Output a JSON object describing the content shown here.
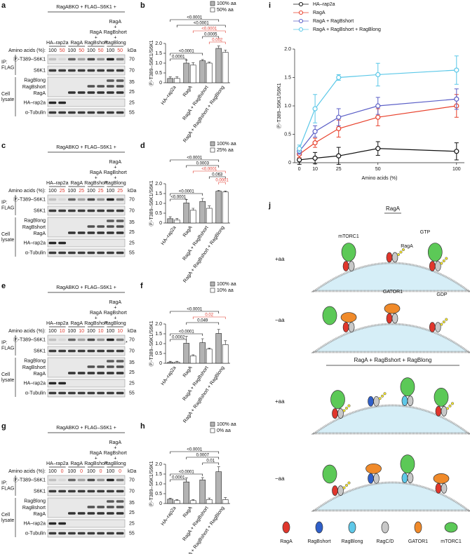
{
  "panel_labels": [
    "a",
    "b",
    "c",
    "d",
    "e",
    "f",
    "g",
    "h",
    "i",
    "j"
  ],
  "blots": [
    {
      "header": "RagABKO + FLAG–S6K1 +",
      "lanes": [
        [
          "HA–rap2a"
        ],
        [
          "RagA"
        ],
        [
          "RagA",
          "+",
          "RagBshort"
        ],
        [
          "RagA",
          "+",
          "RagBshort",
          "+",
          "RagBlong"
        ]
      ],
      "amino_acids_label": "Amino acids (%):",
      "amino_acids": [
        100,
        50,
        100,
        50,
        100,
        50,
        100,
        50
      ],
      "reduced_color": "#e03a2f",
      "kda_label": "kDa",
      "ip_label": [
        "IP:",
        "FLAG"
      ],
      "lysate_label": [
        "Cell",
        "lysate"
      ],
      "rows": [
        {
          "labels": [
            "Ⓟ-T389–S6K1"
          ],
          "kda": [
            70
          ]
        },
        {
          "labels": [
            "S6K1"
          ],
          "kda": [
            70
          ]
        },
        {
          "labels": [
            "RagBlong",
            "RagBshort",
            "RagA"
          ],
          "kda": [
            35,
            25
          ]
        },
        {
          "labels": [
            "HA–rap2a"
          ],
          "kda": [
            25
          ]
        },
        {
          "labels": [
            "α-Tubulin"
          ],
          "kda": [
            55
          ]
        }
      ]
    },
    {
      "header": "RagABKO + FLAG–S6K1 +",
      "lanes": [
        [
          "HA–rap2a"
        ],
        [
          "RagA"
        ],
        [
          "RagA",
          "+",
          "RagBshort"
        ],
        [
          "RagA",
          "+",
          "RagBshort",
          "+",
          "RagBlong"
        ]
      ],
      "amino_acids_label": "Amino acids (%):",
      "amino_acids": [
        100,
        25,
        100,
        25,
        100,
        25,
        100,
        25
      ],
      "reduced_color": "#e03a2f",
      "kda_label": "kDa",
      "ip_label": [
        "IP:",
        "FLAG"
      ],
      "lysate_label": [
        "Cell",
        "lysate"
      ],
      "rows": [
        {
          "labels": [
            "Ⓟ-T389–S6K1"
          ],
          "kda": [
            70
          ]
        },
        {
          "labels": [
            "S6K1"
          ],
          "kda": [
            70
          ]
        },
        {
          "labels": [
            "RagBlong",
            "RagBshort",
            "RagA"
          ],
          "kda": [
            35,
            25
          ]
        },
        {
          "labels": [
            "HA–rap2a"
          ],
          "kda": [
            25
          ]
        },
        {
          "labels": [
            "α-Tubulin"
          ],
          "kda": [
            55
          ]
        }
      ]
    },
    {
      "header": "RagABKO + FLAG–S6K1 +",
      "lanes": [
        [
          "HA–rap2a"
        ],
        [
          "RagA"
        ],
        [
          "RagA",
          "+",
          "RagBshort"
        ],
        [
          "RagA",
          "+",
          "RagBshort",
          "+",
          "RagBlong"
        ]
      ],
      "amino_acids_label": "Amino acids (%):",
      "amino_acids": [
        100,
        10,
        100,
        10,
        100,
        10,
        100,
        10
      ],
      "reduced_color": "#e03a2f",
      "kda_label": "kDa",
      "ip_label": [
        "IP:",
        "FLAG"
      ],
      "lysate_label": [
        "Cell",
        "lysate"
      ],
      "rows": [
        {
          "labels": [
            "Ⓟ-T389–S6K1"
          ],
          "kda": [
            70
          ],
          "note": "*"
        },
        {
          "labels": [
            "S6K1"
          ],
          "kda": [
            70
          ]
        },
        {
          "labels": [
            "RagBlong",
            "RagBshort",
            "RagA"
          ],
          "kda": [
            35,
            25
          ]
        },
        {
          "labels": [
            "HA–rap2a"
          ],
          "kda": [
            25
          ]
        },
        {
          "labels": [
            "α-Tubulin"
          ],
          "kda": [
            55
          ]
        }
      ]
    },
    {
      "header": "RagABKO + FLAG–S6K1 +",
      "lanes": [
        [
          "HA–rap2a"
        ],
        [
          "RagA"
        ],
        [
          "RagA",
          "+",
          "RagBshort"
        ],
        [
          "RagA",
          "+",
          "RagBshort",
          "+",
          "RagBlong"
        ]
      ],
      "amino_acids_label": "Amino acids (%):",
      "amino_acids": [
        100,
        0,
        100,
        0,
        100,
        0,
        100,
        0
      ],
      "reduced_color": "#e03a2f",
      "kda_label": "kDa",
      "ip_label": [
        "IP:",
        "FLAG"
      ],
      "lysate_label": [
        "Cell",
        "lysate"
      ],
      "rows": [
        {
          "labels": [
            "Ⓟ-T389–S6K1"
          ],
          "kda": [
            70
          ]
        },
        {
          "labels": [
            "S6K1"
          ],
          "kda": [
            70
          ]
        },
        {
          "labels": [
            "RagBlong",
            "RagBshort",
            "RagA"
          ],
          "kda": [
            35,
            25
          ]
        },
        {
          "labels": [
            "HA–rap2a"
          ],
          "kda": [
            25
          ]
        },
        {
          "labels": [
            "α-Tubulin"
          ],
          "kda": [
            55
          ]
        }
      ]
    }
  ],
  "chart_data": [
    {
      "type": "bar",
      "y_label": "Ⓟ-T389–S6K1/S6K1",
      "categories": [
        "HA–rap2a",
        "RagA",
        "RagA + RagBshort",
        "RagA + RagBshort + RagBlong"
      ],
      "series": [
        {
          "name": "100% aa",
          "color": "#b3b3b3",
          "values": [
            0.22,
            1.0,
            1.12,
            1.75
          ],
          "errors": [
            0.08,
            0.15,
            0.06,
            0.12
          ]
        },
        {
          "name": "50% aa",
          "color": "#ffffff",
          "values": [
            0.22,
            0.9,
            1.0,
            1.55
          ],
          "errors": [
            0.08,
            0.12,
            0.05,
            0.12
          ]
        }
      ],
      "ylim": [
        0,
        2
      ],
      "yticks": [
        0,
        0.5,
        {
          "value": 1,
          "label": "1.0"
        },
        1.5,
        {
          "value": 2,
          "label": "2.0"
        }
      ],
      "brackets": [
        {
          "label": "<0.0001",
          "color": "#000000"
        },
        {
          "label": "<0.0001",
          "color": "#000000"
        },
        {
          "label": "<0.0001",
          "color": "#e03a2f"
        },
        {
          "label": "0.0005",
          "color": "#000000"
        },
        {
          "label": "0.002",
          "color": "#e03a2f"
        },
        {
          "label": "<0.0001",
          "color": "#000000"
        },
        {
          "label": "0.0001",
          "color": "#000000"
        }
      ]
    },
    {
      "type": "bar",
      "y_label": "Ⓟ-T389–S6K1/S6K1",
      "categories": [
        "HA–rap2a",
        "RagA",
        "RagA + RagBshort",
        "RagA + RagBshort + RagBlong"
      ],
      "series": [
        {
          "name": "100% aa",
          "color": "#b3b3b3",
          "values": [
            0.22,
            1.02,
            1.1,
            1.62
          ],
          "errors": [
            0.1,
            0.18,
            0.15,
            0.05
          ]
        },
        {
          "name": "25% aa",
          "color": "#ffffff",
          "values": [
            0.15,
            0.65,
            0.75,
            1.58
          ],
          "errors": [
            0.08,
            0.1,
            0.12,
            0.05
          ]
        }
      ],
      "ylim": [
        0,
        2
      ],
      "yticks": [
        0,
        0.5,
        {
          "value": 1,
          "label": "1.0"
        },
        1.5,
        {
          "value": 2,
          "label": "2.0"
        }
      ],
      "brackets": [
        {
          "label": "<0.0001",
          "color": "#000000"
        },
        {
          "label": "0.0003",
          "color": "#000000"
        },
        {
          "label": "<0.0001",
          "color": "#e03a2f"
        },
        {
          "label": "0.063",
          "color": "#000000"
        },
        {
          "label": "0.0001",
          "color": "#e03a2f"
        },
        {
          "label": "<0.0001",
          "color": "#000000"
        },
        {
          "label": "<0.0001",
          "color": "#000000"
        }
      ]
    },
    {
      "type": "bar",
      "y_label": "Ⓟ-T389–S6K1/S6K1",
      "categories": [
        "HA–rap2a",
        "RagA",
        "RagA + RagBshort",
        "RagA + RagBshort + RagBlong"
      ],
      "series": [
        {
          "name": "100% aa",
          "color": "#b3b3b3",
          "values": [
            0.05,
            1.02,
            1.05,
            1.52
          ],
          "errors": [
            0.05,
            0.35,
            0.2,
            0.2
          ]
        },
        {
          "name": "10% aa",
          "color": "#ffffff",
          "values": [
            0.05,
            0.38,
            0.72,
            0.95
          ],
          "errors": [
            0.05,
            0.05,
            0.05,
            0.2
          ]
        }
      ],
      "ylim": [
        0,
        2
      ],
      "yticks": [
        0,
        0.5,
        {
          "value": 1,
          "label": "1.0"
        },
        1.5,
        {
          "value": 2,
          "label": "2.0"
        }
      ],
      "brackets": [
        {
          "label": "<0.0001",
          "color": "#000000"
        },
        {
          "label": "0.02",
          "color": "#e03a2f"
        },
        {
          "label": "0.049",
          "color": "#000000"
        },
        {
          "label": "<0.0001",
          "color": "#000000"
        },
        {
          "label": "0.0002",
          "color": "#000000"
        }
      ]
    },
    {
      "type": "bar",
      "y_label": "Ⓟ-T389–S6K1/S6K1",
      "categories": [
        "HA–rap2a",
        "RagA",
        "RagA + RagBshort",
        "RagA + RagBshort + RagBlong"
      ],
      "series": [
        {
          "name": "100% aa",
          "color": "#b3b3b3",
          "values": [
            0.22,
            1.1,
            1.2,
            1.62
          ],
          "errors": [
            0.05,
            0.2,
            0.12,
            0.25
          ]
        },
        {
          "name": "0% aa",
          "color": "#ffffff",
          "values": [
            0.15,
            0.15,
            0.2,
            0.2
          ],
          "errors": [
            0.05,
            0.05,
            0.08,
            0.1
          ]
        }
      ],
      "ylim": [
        0,
        2
      ],
      "yticks": [
        0,
        0.5,
        {
          "value": 1,
          "label": "1.0"
        },
        1.5,
        {
          "value": 2,
          "label": "2.0"
        }
      ],
      "brackets": [
        {
          "label": "<0.0001",
          "color": "#000000"
        },
        {
          "label": "0.0007",
          "color": "#000000"
        },
        {
          "label": "0.01",
          "color": "#000000"
        },
        {
          "label": "<0.0001",
          "color": "#000000"
        },
        {
          "label": "0.0001",
          "color": "#000000"
        }
      ]
    },
    {
      "type": "line",
      "y_label": "Ⓟ-T389–S6K1/S6K1",
      "x_label": "Amino acids (%)",
      "x": [
        0,
        10,
        25,
        50,
        100
      ],
      "series": [
        {
          "name": "HA–rap2a",
          "color": "#111111",
          "values": [
            0.05,
            0.08,
            0.12,
            0.25,
            0.2
          ],
          "errors": [
            0.08,
            0.1,
            0.15,
            0.12,
            0.15
          ]
        },
        {
          "name": "RagA",
          "color": "#e8412c",
          "values": [
            0.15,
            0.35,
            0.6,
            0.8,
            1.0
          ],
          "errors": [
            0.06,
            0.08,
            0.15,
            0.15,
            0.2
          ]
        },
        {
          "name": "RagA + RagBshort",
          "color": "#5b5fc7",
          "values": [
            0.2,
            0.55,
            0.8,
            1.0,
            1.12
          ],
          "errors": [
            0.05,
            0.1,
            0.15,
            0.15,
            0.18
          ]
        },
        {
          "name": "RagA + RagBshort + RagBlong",
          "color": "#5bc8e8",
          "values": [
            0.25,
            0.95,
            1.5,
            1.55,
            1.63
          ],
          "errors": [
            0.06,
            0.25,
            0.05,
            0.2,
            0.25
          ]
        }
      ],
      "xlim": [
        -3,
        105
      ],
      "xticks": [
        0,
        10,
        25,
        50,
        100
      ],
      "ylim": [
        0,
        2
      ],
      "yticks": [
        0,
        0.5,
        {
          "value": 1,
          "label": "1.0"
        },
        1.5,
        {
          "value": 2,
          "label": "2.0"
        }
      ]
    }
  ],
  "diagram": {
    "header": "RagA",
    "scenes": [
      {
        "condition": "+aa",
        "labels": [
          "mTORC1",
          "GTP",
          "RagA"
        ]
      },
      {
        "condition": "−aa",
        "labels": [
          "GATOR1",
          "GDP"
        ]
      },
      {
        "condition": "+aa"
      },
      {
        "condition": "−aa"
      }
    ],
    "divider_title": "RagA + RagBshort + RagBlong",
    "legend": [
      "RagA",
      "RagBshort",
      "RagBlong",
      "RagC/D",
      "GATOR1",
      "mTORC1"
    ]
  }
}
